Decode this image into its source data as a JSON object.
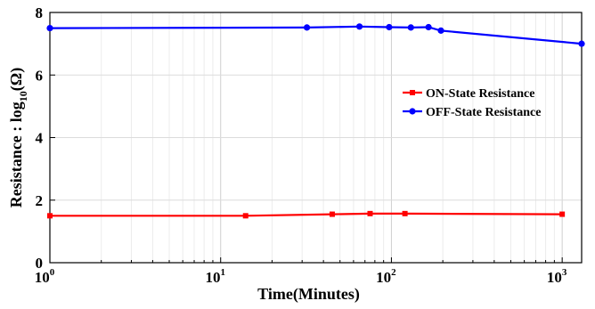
{
  "chart_data": {
    "type": "line",
    "xscale": "log",
    "xlim": [
      1,
      1300
    ],
    "ylim": [
      0,
      8
    ],
    "grid": true,
    "legend_position": "center-right",
    "xlabel": "Time(Minutes)",
    "ylabel_parts": {
      "main": "Resistance : log",
      "sub": "10",
      "tail": "(Ω)"
    },
    "x_ticks": [
      {
        "base": "10",
        "exp": "0",
        "value": 1
      },
      {
        "base": "10",
        "exp": "1",
        "value": 10
      },
      {
        "base": "10",
        "exp": "2",
        "value": 100
      },
      {
        "base": "10",
        "exp": "3",
        "value": 1000
      }
    ],
    "y_ticks": [
      {
        "label": "0",
        "value": 0
      },
      {
        "label": "2",
        "value": 2
      },
      {
        "label": "4",
        "value": 4
      },
      {
        "label": "6",
        "value": 6
      },
      {
        "label": "8",
        "value": 8
      }
    ],
    "series": [
      {
        "name": "ON-State Resistance",
        "color": "#ff0000",
        "marker": "square",
        "x": [
          1,
          14,
          45,
          75,
          120,
          1000
        ],
        "y": [
          1.5,
          1.5,
          1.55,
          1.57,
          1.57,
          1.55
        ]
      },
      {
        "name": "OFF-State Resistance",
        "color": "#0000ff",
        "marker": "circle",
        "x": [
          1,
          32,
          65,
          97,
          130,
          165,
          195,
          1300
        ],
        "y": [
          7.5,
          7.52,
          7.55,
          7.53,
          7.52,
          7.53,
          7.42,
          7.0
        ]
      }
    ]
  }
}
